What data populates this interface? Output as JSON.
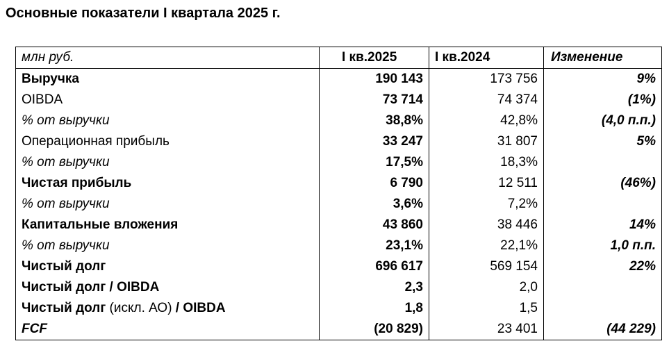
{
  "title": "Основные показатели I квартала 2025 г.",
  "table": {
    "units": "млн руб.",
    "col_current": "I кв.2025",
    "col_previous": "I кв.2024",
    "col_change": "Изменение",
    "rows": [
      {
        "label": "Выручка",
        "current": "190 143",
        "previous": "173 756",
        "change": "9%"
      },
      {
        "label": "OIBDA",
        "current": "73 714",
        "previous": "74 374",
        "change": "(1%)"
      },
      {
        "label": "% от выручки",
        "current": "38,8%",
        "previous": "42,8%",
        "change": "(4,0 п.п.)"
      },
      {
        "label": "Операционная прибыль",
        "current": "33 247",
        "previous": "31 807",
        "change": "5%"
      },
      {
        "label": "% от выручки",
        "current": "17,5%",
        "previous": "18,3%",
        "change": ""
      },
      {
        "label": "Чистая прибыль",
        "current": "6 790",
        "previous": "12 511",
        "change": "(46%)"
      },
      {
        "label": "% от выручки",
        "current": "3,6%",
        "previous": "7,2%",
        "change": ""
      },
      {
        "label": "Капитальные вложения",
        "current": "43 860",
        "previous": "38 446",
        "change": "14%"
      },
      {
        "label": "% от выручки",
        "current": "23,1%",
        "previous": "22,1%",
        "change": "1,0 п.п."
      },
      {
        "label": "Чистый долг",
        "current": "696 617",
        "previous": "569 154",
        "change": "22%"
      },
      {
        "label": "Чистый долг / OIBDA",
        "current": "2,3",
        "previous": "2,0",
        "change": ""
      },
      {
        "label_part1": "Чистый долг ",
        "label_part2": "(искл. АО)",
        "label_part3": " / OIBDA",
        "current": "1,8",
        "previous": "1,5",
        "change": ""
      },
      {
        "label": "FCF",
        "current": "(20 829)",
        "previous": "23 401",
        "change": "(44 229)"
      }
    ]
  }
}
